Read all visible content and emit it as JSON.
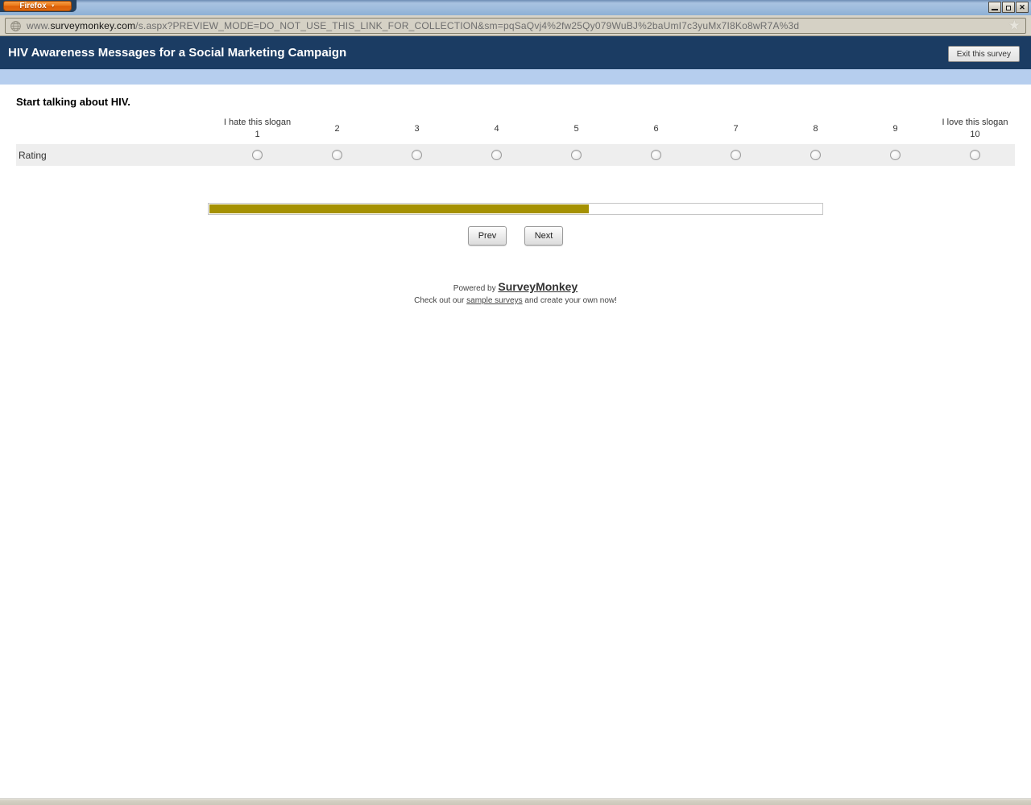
{
  "browser": {
    "firefox_button": "Firefox",
    "url": {
      "prefix": "www.",
      "domain": "surveymonkey.com",
      "path": "/s.aspx?PREVIEW_MODE=DO_NOT_USE_THIS_LINK_FOR_COLLECTION&sm=pqSaQvj4%2fw25Qy079WuBJ%2baUmI7c3yuMx7I8Ko8wR7A%3d"
    },
    "icons": {
      "globe": "globe-icon",
      "bookmark_star": "bookmark-star-icon",
      "minimize": "minimize-icon",
      "restore": "restore-icon",
      "close": "close-icon"
    }
  },
  "survey": {
    "header": {
      "title": "HIV Awareness Messages for a Social Marketing Campaign",
      "exit_button": "Exit this survey"
    },
    "question": {
      "title": "Start talking about HIV.",
      "row_label": "Rating",
      "scale": [
        {
          "label": "I hate this slogan",
          "value": "1"
        },
        {
          "value": "2"
        },
        {
          "value": "3"
        },
        {
          "value": "4"
        },
        {
          "value": "5"
        },
        {
          "value": "6"
        },
        {
          "value": "7"
        },
        {
          "value": "8"
        },
        {
          "value": "9"
        },
        {
          "label": "I love this slogan",
          "value": "10"
        }
      ],
      "selected_value": null
    },
    "progress": {
      "percent": 62,
      "fill_color": "#a59103"
    },
    "nav": {
      "prev": "Prev",
      "next": "Next"
    },
    "footer": {
      "powered_by": "Powered by",
      "brand": "SurveyMonkey",
      "tagline_pre": "Check out our",
      "tagline_link": "sample surveys",
      "tagline_post": "and create your own now!"
    },
    "colors": {
      "header_navy": "#1b3c63",
      "band_blue": "#b6ceee",
      "row_gray": "#eeeeee",
      "firefox_orange": "#e4670f"
    }
  }
}
